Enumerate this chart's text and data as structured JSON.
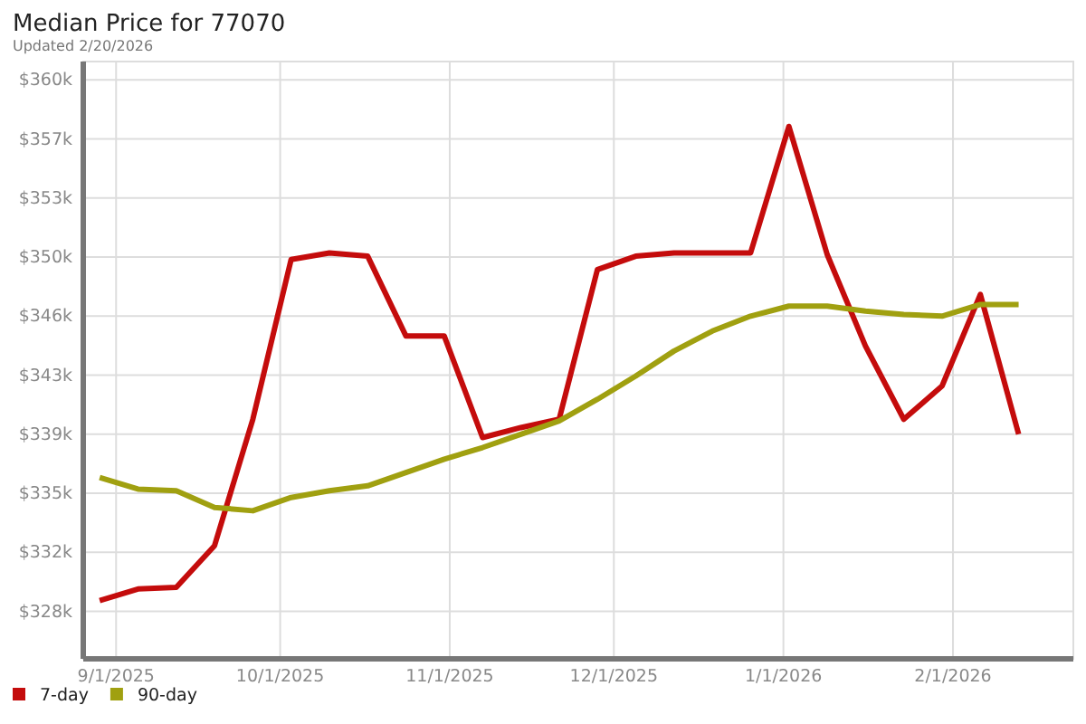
{
  "chart_data": {
    "type": "line",
    "title": "Median Price for 77070",
    "subtitle": "Updated 2/20/2026",
    "x": [
      "2025-08-29",
      "2025-09-05",
      "2025-09-12",
      "2025-09-19",
      "2025-09-26",
      "2025-10-03",
      "2025-10-10",
      "2025-10-17",
      "2025-10-24",
      "2025-10-31",
      "2025-11-07",
      "2025-11-14",
      "2025-11-21",
      "2025-11-28",
      "2025-12-05",
      "2025-12-12",
      "2025-12-19",
      "2025-12-26",
      "2026-01-02",
      "2026-01-09",
      "2026-01-16",
      "2026-01-23",
      "2026-01-30",
      "2026-02-06",
      "2026-02-13"
    ],
    "series": [
      {
        "name": "7-day",
        "color": "#c40c0c",
        "values": [
          329.0,
          329.7,
          329.8,
          332.3,
          339.9,
          349.5,
          349.9,
          349.7,
          344.9,
          344.9,
          338.8,
          339.4,
          339.9,
          348.9,
          349.7,
          349.9,
          349.9,
          349.9,
          357.5,
          349.8,
          344.3,
          339.9,
          341.9,
          347.4,
          339.0
        ]
      },
      {
        "name": "90-day",
        "color": "#a0a010",
        "values": [
          336.4,
          335.7,
          335.6,
          334.6,
          334.4,
          335.2,
          335.6,
          335.9,
          336.7,
          337.5,
          338.2,
          339.0,
          339.8,
          341.1,
          342.5,
          344.0,
          345.2,
          346.1,
          346.7,
          346.7,
          346.4,
          346.2,
          346.1,
          346.8,
          346.8
        ]
      }
    ],
    "xlim": [
      "2025-08-26",
      "2026-02-23"
    ],
    "xticks": [
      {
        "value": "2025-09-01",
        "label": "9/1/2025"
      },
      {
        "value": "2025-10-01",
        "label": "10/1/2025"
      },
      {
        "value": "2025-11-01",
        "label": "11/1/2025"
      },
      {
        "value": "2025-12-01",
        "label": "12/1/2025"
      },
      {
        "value": "2026-01-01",
        "label": "1/1/2026"
      },
      {
        "value": "2026-02-01",
        "label": "2/1/2026"
      }
    ],
    "ylim": [
      325.5,
      361.4
    ],
    "yticks": [
      {
        "value": 328.35,
        "label": "$328k"
      },
      {
        "value": 331.9,
        "label": "$332k"
      },
      {
        "value": 335.45,
        "label": "$335k"
      },
      {
        "value": 339.0,
        "label": "$339k"
      },
      {
        "value": 342.55,
        "label": "$343k"
      },
      {
        "value": 346.1,
        "label": "$346k"
      },
      {
        "value": 349.65,
        "label": "$350k"
      },
      {
        "value": 353.2,
        "label": "$353k"
      },
      {
        "value": 356.75,
        "label": "$357k"
      },
      {
        "value": 360.3,
        "label": "$360k"
      }
    ],
    "grid": true,
    "legend": "bottom left",
    "marker": "none",
    "line_style": "solid"
  }
}
